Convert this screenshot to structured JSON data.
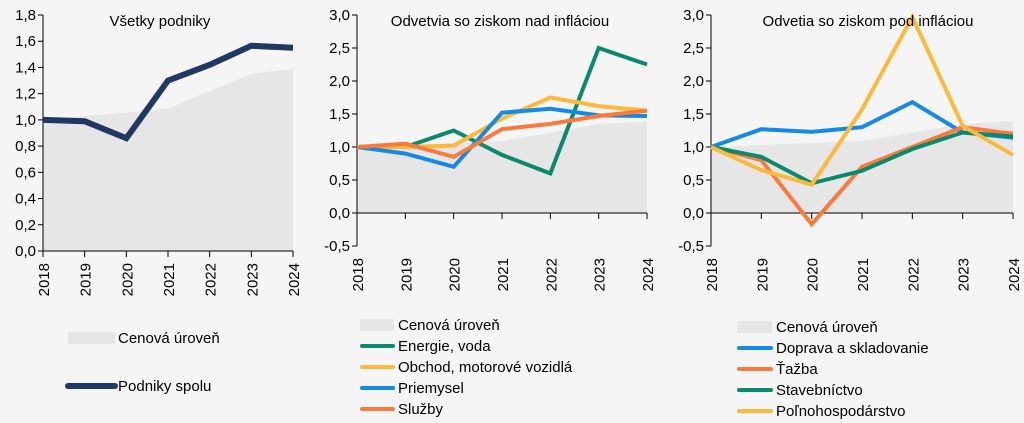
{
  "colors": {
    "background": "#f5f5f5",
    "price_fill": "#e6e6e6",
    "navy": "#1f3864",
    "green": "#0a8a6d",
    "yellow": "#fdb93a",
    "blue": "#1489e6",
    "orange": "#f97a3a"
  },
  "chart_data": [
    {
      "type": "line",
      "title": "Všetky podniky",
      "categories": [
        "2018",
        "2019",
        "2020",
        "2021",
        "2022",
        "2023",
        "2024"
      ],
      "ylim": [
        0,
        1.8
      ],
      "yticks": [
        "0,0",
        "0,2",
        "0,4",
        "0,6",
        "0,8",
        "1,0",
        "1,2",
        "1,4",
        "1,6",
        "1,8"
      ],
      "grid": false,
      "legend": "bottom",
      "area": {
        "name": "Cenová úroveň",
        "color": "#e6e6e6",
        "values": [
          1.0,
          1.03,
          1.055,
          1.085,
          1.22,
          1.35,
          1.39
        ]
      },
      "series": [
        {
          "name": "Podniky spolu",
          "color": "#1f3864",
          "values": [
            1.0,
            0.99,
            0.86,
            1.3,
            1.42,
            1.565,
            1.55
          ]
        }
      ]
    },
    {
      "type": "line",
      "title": "Odvetvia so ziskom nad infláciou",
      "categories": [
        "2018",
        "2019",
        "2020",
        "2021",
        "2022",
        "2023",
        "2024"
      ],
      "ylim": [
        -0.5,
        3.0
      ],
      "yticks": [
        "-0,5",
        "0,0",
        "0,5",
        "1,0",
        "1,5",
        "2,0",
        "2,5",
        "3,0"
      ],
      "grid": false,
      "legend": "bottom",
      "area": {
        "name": "Cenová úroveň",
        "color": "#e6e6e6",
        "values": [
          1.0,
          1.03,
          1.06,
          1.09,
          1.22,
          1.35,
          1.39
        ]
      },
      "series": [
        {
          "name": "Energie, voda",
          "color": "#0a8a6d",
          "values": [
            1.0,
            1.0,
            1.25,
            0.88,
            0.6,
            2.5,
            2.25
          ]
        },
        {
          "name": "Obchod, motorové vozidlá",
          "color": "#fdb93a",
          "values": [
            1.0,
            1.0,
            1.02,
            1.43,
            1.75,
            1.62,
            1.55
          ]
        },
        {
          "name": "Priemysel",
          "color": "#1489e6",
          "values": [
            1.0,
            0.9,
            0.7,
            1.52,
            1.58,
            1.48,
            1.47
          ]
        },
        {
          "name": "Služby",
          "color": "#f97a3a",
          "values": [
            1.0,
            1.05,
            0.85,
            1.27,
            1.35,
            1.47,
            1.55
          ]
        }
      ]
    },
    {
      "type": "line",
      "title": "Odvetia so ziskom pod infláciou",
      "categories": [
        "2018",
        "2019",
        "2020",
        "2021",
        "2022",
        "2023",
        "2024"
      ],
      "ylim": [
        -0.5,
        3.0
      ],
      "yticks": [
        "-0,5",
        "0,0",
        "0,5",
        "1,0",
        "1,5",
        "2,0",
        "2,5",
        "3,0"
      ],
      "grid": false,
      "legend": "bottom",
      "area": {
        "name": "Cenová úroveň",
        "color": "#e6e6e6",
        "values": [
          1.0,
          1.03,
          1.06,
          1.09,
          1.22,
          1.35,
          1.39
        ]
      },
      "series": [
        {
          "name": "Doprava a skladovanie",
          "color": "#1489e6",
          "values": [
            1.0,
            1.27,
            1.23,
            1.3,
            1.68,
            1.22,
            1.14
          ]
        },
        {
          "name": "Ťažba",
          "color": "#f97a3a",
          "values": [
            1.0,
            0.8,
            -0.17,
            0.7,
            1.0,
            1.3,
            1.2
          ]
        },
        {
          "name": "Stavebníctvo",
          "color": "#0a8a6d",
          "values": [
            1.0,
            0.85,
            0.45,
            0.64,
            0.97,
            1.22,
            1.16
          ]
        },
        {
          "name": "Poľnohospodárstvo",
          "color": "#fdb93a",
          "values": [
            1.0,
            0.65,
            0.43,
            1.57,
            2.97,
            1.32,
            0.88
          ]
        }
      ]
    }
  ]
}
